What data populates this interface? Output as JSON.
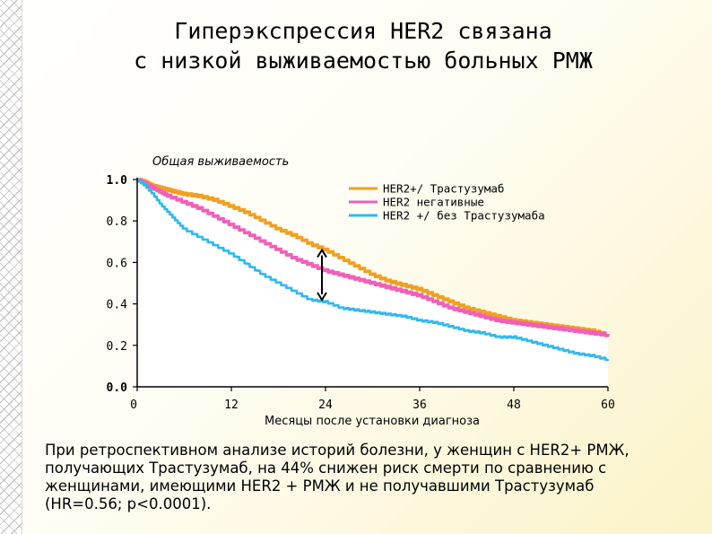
{
  "title_lines": [
    "Гиперэкспрессия HER2 связана",
    "с низкой выживаемостью больных РМЖ"
  ],
  "caption_lines": [
    "При ретроспективном анализе историй болезни, у женщин с HER2+ РМЖ,",
    "получающих Трастузумаб, на 44% снижен риск смерти по сравнению с",
    "женщинами, имеющими HER2 + РМЖ и не получавшими  Трастузумаб",
    "(HR=0.56; p<0.0001)."
  ],
  "chart_data": {
    "type": "line",
    "title": "Общая выживаемость",
    "xlabel": "Месяцы после установки диагноза",
    "ylabel": "",
    "xlim": [
      0,
      60
    ],
    "ylim": [
      0,
      1.0
    ],
    "x_ticks": [
      "0",
      "12",
      "24",
      "36",
      "48",
      "60"
    ],
    "y_ticks": [
      "0.0",
      "0.2",
      "0.4",
      "0.6",
      "0.8",
      "1.0"
    ],
    "legend_position": "top-right",
    "series": [
      {
        "name": "HER2+/ Трастузумаб",
        "color": "#f0a020",
        "x": [
          0,
          1,
          2,
          3,
          4,
          5,
          6,
          8,
          10,
          12,
          14,
          16,
          18,
          20,
          22,
          24,
          26,
          28,
          30,
          32,
          34,
          36,
          38,
          40,
          42,
          44,
          46,
          48,
          50,
          52,
          54,
          56,
          58,
          60
        ],
        "y": [
          1.0,
          0.99,
          0.97,
          0.96,
          0.95,
          0.94,
          0.93,
          0.92,
          0.9,
          0.87,
          0.84,
          0.8,
          0.76,
          0.73,
          0.69,
          0.66,
          0.62,
          0.58,
          0.54,
          0.51,
          0.49,
          0.47,
          0.44,
          0.41,
          0.38,
          0.36,
          0.34,
          0.32,
          0.31,
          0.3,
          0.29,
          0.28,
          0.27,
          0.25
        ]
      },
      {
        "name": "HER2 негативные",
        "color": "#f060b8",
        "x": [
          0,
          1,
          2,
          3,
          4,
          6,
          8,
          10,
          12,
          14,
          16,
          18,
          20,
          22,
          24,
          26,
          28,
          30,
          32,
          34,
          36,
          38,
          40,
          42,
          44,
          46,
          48,
          50,
          52,
          54,
          56,
          58,
          60
        ],
        "y": [
          1.0,
          0.98,
          0.96,
          0.94,
          0.92,
          0.89,
          0.86,
          0.82,
          0.78,
          0.74,
          0.7,
          0.66,
          0.62,
          0.59,
          0.56,
          0.54,
          0.52,
          0.5,
          0.48,
          0.46,
          0.44,
          0.41,
          0.38,
          0.36,
          0.34,
          0.32,
          0.31,
          0.3,
          0.29,
          0.28,
          0.27,
          0.26,
          0.25
        ]
      },
      {
        "name": "HER2 +/ без Трастузумаба",
        "color": "#30b8f0",
        "x": [
          0,
          1,
          2,
          3,
          4,
          5,
          6,
          8,
          10,
          12,
          14,
          16,
          18,
          20,
          22,
          24,
          26,
          28,
          30,
          32,
          34,
          36,
          38,
          40,
          42,
          44,
          46,
          48,
          50,
          52,
          54,
          56,
          58,
          60
        ],
        "y": [
          1.0,
          0.97,
          0.93,
          0.88,
          0.84,
          0.8,
          0.76,
          0.72,
          0.68,
          0.64,
          0.59,
          0.54,
          0.5,
          0.46,
          0.42,
          0.41,
          0.38,
          0.37,
          0.36,
          0.35,
          0.34,
          0.32,
          0.31,
          0.29,
          0.27,
          0.26,
          0.24,
          0.24,
          0.22,
          0.2,
          0.18,
          0.16,
          0.15,
          0.13
        ]
      }
    ]
  }
}
